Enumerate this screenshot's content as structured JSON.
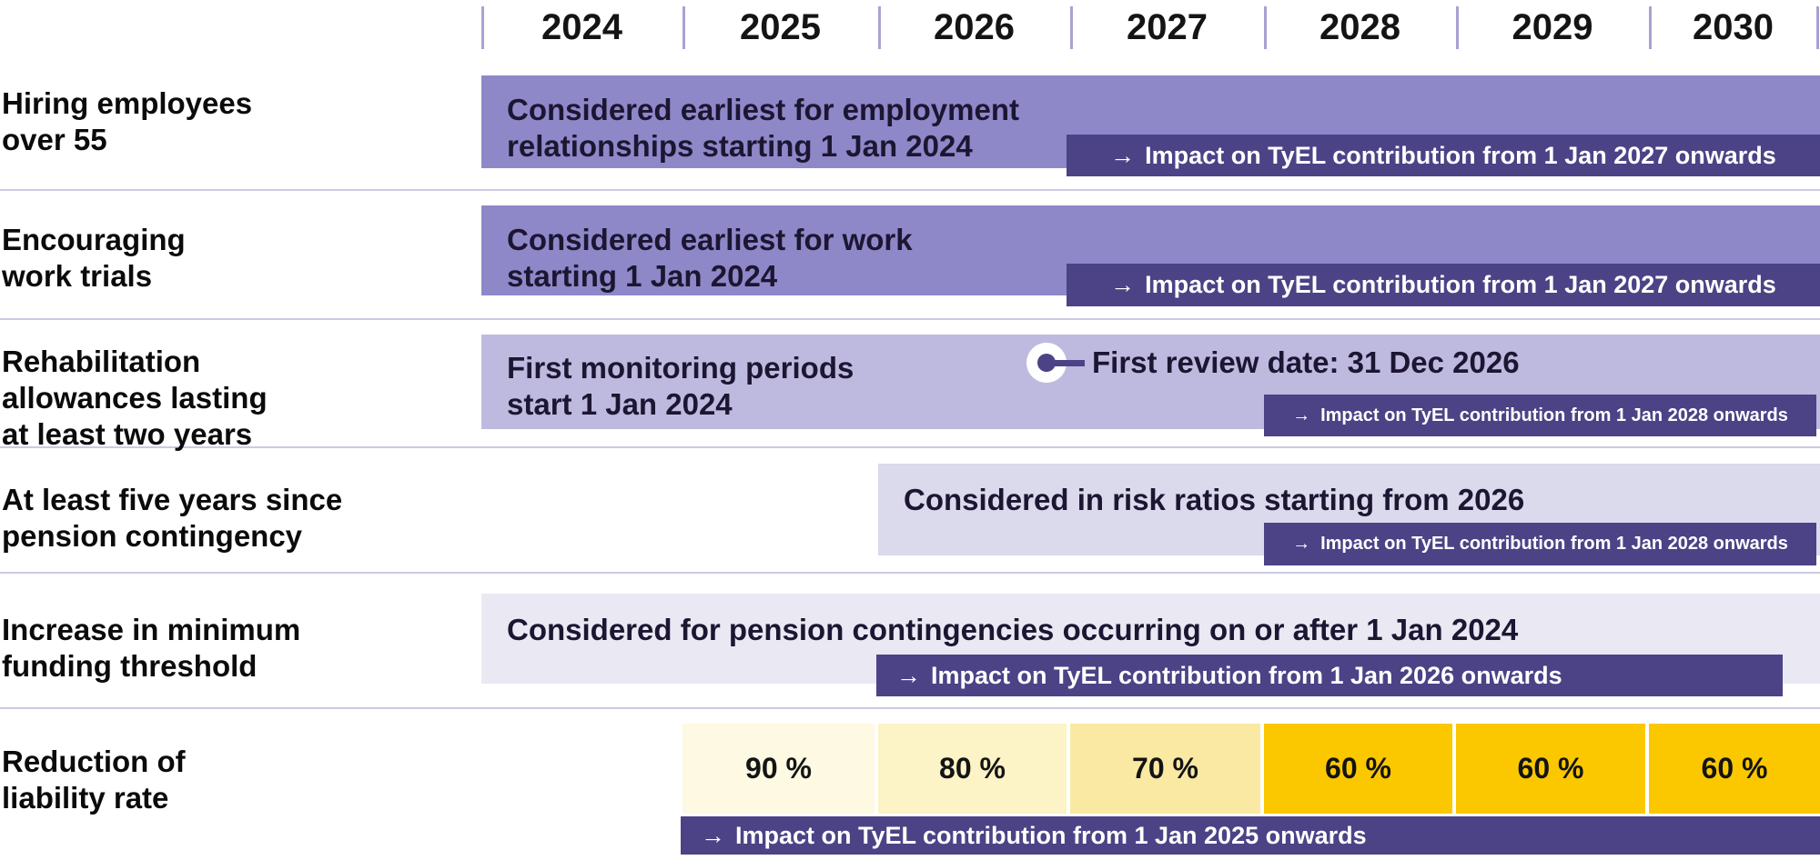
{
  "header": {
    "years": [
      "2024",
      "2025",
      "2026",
      "2027",
      "2028",
      "2029",
      "2030"
    ]
  },
  "icons": {
    "arrow_right": "→"
  },
  "rows": [
    {
      "label_lines": [
        "Hiring employees",
        "over 55"
      ],
      "bar_lines": [
        "Considered earliest for employment",
        "relationships starting 1 Jan 2024"
      ],
      "impact_label": "Impact on TyEL contribution from 1 Jan 2027 onwards"
    },
    {
      "label_lines": [
        "Encouraging",
        "work trials"
      ],
      "bar_lines": [
        "Considered earliest for work",
        "starting 1 Jan 2024"
      ],
      "impact_label": "Impact on TyEL contribution from 1 Jan 2027 onwards"
    },
    {
      "label_lines": [
        "Rehabilitation",
        "allowances lasting",
        "at least two years"
      ],
      "bar_lines": [
        "First monitoring periods",
        "start 1 Jan 2024"
      ],
      "milestone_label": "First review date: 31 Dec 2026",
      "impact_label": "Impact on TyEL contribution from 1 Jan 2028 onwards"
    },
    {
      "label_lines": [
        "At least five years since",
        "pension contingency"
      ],
      "bar_lines": [
        "Considered in risk ratios starting from 2026"
      ],
      "impact_label": "Impact on TyEL contribution from 1 Jan 2028 onwards"
    },
    {
      "label_lines": [
        "Increase in minimum",
        "funding threshold"
      ],
      "bar_lines": [
        "Considered for pension contingencies occurring on or after 1 Jan 2024"
      ],
      "impact_label": "Impact on TyEL contribution from 1 Jan 2026 onwards"
    },
    {
      "label_lines": [
        "Reduction of",
        "liability rate"
      ],
      "cells": [
        "90 %",
        "80 %",
        "70 %",
        "60 %",
        "60 %",
        "60 %"
      ],
      "impact_label": "Impact on TyEL contribution from 1 Jan 2025 onwards"
    }
  ],
  "colors": {
    "bar_purple_strong": "#8e88c9",
    "bar_purple_light": "#bebadf",
    "bar_purple_lighter": "#dbd9ec",
    "bar_purple_faint": "#e9e8f3",
    "impact_bar": "#4b4386",
    "rate_90": "#fdf9e3",
    "rate_80": "#fcf3c6",
    "rate_70": "#fae9a2",
    "rate_60": "#fbc800",
    "grid_line": "#cccae2",
    "tick_line": "#a7a2d3",
    "bar_text": "#1c1632",
    "label_text": "#0b0b0b",
    "impact_text": "#ffffff"
  },
  "chart_data": {
    "type": "gantt",
    "title": "",
    "x_axis": {
      "unit": "year",
      "ticks": [
        2024,
        2025,
        2026,
        2027,
        2028,
        2029,
        2030
      ],
      "range_years": [
        2024,
        2031
      ],
      "grid": "vertical ticks in header only"
    },
    "rows": [
      {
        "category": "Hiring employees over 55",
        "bars": [
          {
            "kind": "activity",
            "label": "Considered earliest for employment relationships starting 1 Jan 2024",
            "start_year": 2024,
            "end_year": 2031
          },
          {
            "kind": "impact",
            "label": "Impact on TyEL contribution from 1 Jan 2027 onwards",
            "start_year": 2027,
            "end_year": 2031
          }
        ]
      },
      {
        "category": "Encouraging work trials",
        "bars": [
          {
            "kind": "activity",
            "label": "Considered earliest for work starting 1 Jan 2024",
            "start_year": 2024,
            "end_year": 2031
          },
          {
            "kind": "impact",
            "label": "Impact on TyEL contribution from 1 Jan 2027 onwards",
            "start_year": 2027,
            "end_year": 2031
          }
        ]
      },
      {
        "category": "Rehabilitation allowances lasting at least two years",
        "bars": [
          {
            "kind": "activity",
            "label": "First monitoring periods start 1 Jan 2024",
            "start_year": 2024,
            "end_year": 2031
          },
          {
            "kind": "impact",
            "label": "Impact on TyEL contribution from 1 Jan 2028 onwards",
            "start_year": 2028,
            "end_year": 2031
          }
        ],
        "milestones": [
          {
            "label": "First review date: 31 Dec 2026",
            "date": "31 Dec 2026"
          }
        ]
      },
      {
        "category": "At least five years since pension contingency",
        "bars": [
          {
            "kind": "activity",
            "label": "Considered in risk ratios starting from 2026",
            "start_year": 2026,
            "end_year": 2031
          },
          {
            "kind": "impact",
            "label": "Impact on TyEL contribution from 1 Jan 2028 onwards",
            "start_year": 2028,
            "end_year": 2031
          }
        ]
      },
      {
        "category": "Increase in minimum funding threshold",
        "bars": [
          {
            "kind": "activity",
            "label": "Considered for pension contingencies occurring on or after 1 Jan 2024",
            "start_year": 2024,
            "end_year": 2031
          },
          {
            "kind": "impact",
            "label": "Impact on TyEL contribution from 1 Jan 2026 onwards",
            "start_year": 2026,
            "end_year": 2031
          }
        ]
      },
      {
        "category": "Reduction of liability rate",
        "values": [
          {
            "year": 2025,
            "rate_percent": 90
          },
          {
            "year": 2026,
            "rate_percent": 80
          },
          {
            "year": 2027,
            "rate_percent": 70
          },
          {
            "year": 2028,
            "rate_percent": 60
          },
          {
            "year": 2029,
            "rate_percent": 60
          },
          {
            "year": 2030,
            "rate_percent": 60
          }
        ],
        "bars": [
          {
            "kind": "impact",
            "label": "Impact on TyEL contribution from 1 Jan 2025 onwards",
            "start_year": 2025,
            "end_year": 2031
          }
        ]
      }
    ]
  }
}
